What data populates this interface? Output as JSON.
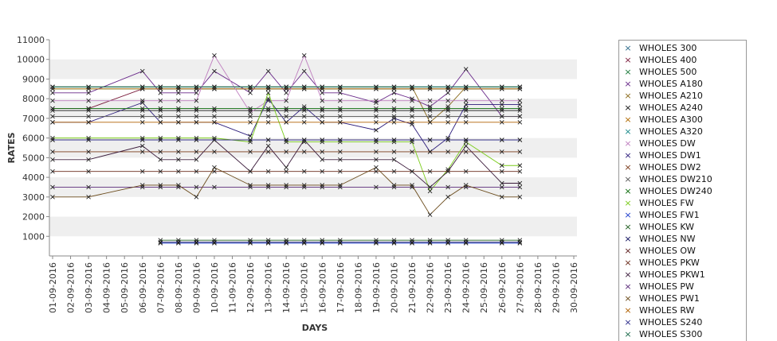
{
  "chart_data": {
    "type": "line",
    "xlabel": "DAYS",
    "ylabel": "RATES",
    "ylim": [
      0,
      11000
    ],
    "yticks": [
      1000,
      2000,
      3000,
      4000,
      5000,
      6000,
      7000,
      8000,
      9000,
      10000,
      11000
    ],
    "grid": "alternating horizontal bands",
    "legend_position": "right",
    "categories": [
      "01-09-2016",
      "02-09-2016",
      "03-09-2016",
      "04-09-2016",
      "05-09-2016",
      "06-09-2016",
      "07-09-2016",
      "08-09-2016",
      "09-09-2016",
      "10-09-2016",
      "11-09-2016",
      "12-09-2016",
      "13-09-2016",
      "14-09-2016",
      "15-09-2016",
      "16-09-2016",
      "17-09-2016",
      "18-09-2016",
      "19-09-2016",
      "20-09-2016",
      "21-09-2016",
      "22-09-2016",
      "23-09-2016",
      "24-09-2016",
      "25-09-2016",
      "26-09-2016",
      "27-09-2016",
      "28-09-2016",
      "29-09-2016",
      "30-09-2016"
    ],
    "series": [
      {
        "name": "WHOLES 300",
        "color": "#2e6b8a",
        "values": [
          8600,
          null,
          8600,
          null,
          null,
          8600,
          8600,
          8600,
          8600,
          8600,
          null,
          8600,
          8600,
          8600,
          8600,
          8600,
          8600,
          null,
          8600,
          8600,
          8600,
          8600,
          8600,
          8600,
          null,
          8600,
          8600,
          null,
          null,
          null
        ]
      },
      {
        "name": "WHOLES 400",
        "color": "#7a1a3a",
        "values": [
          7500,
          null,
          7500,
          null,
          null,
          8500,
          8500,
          8500,
          8500,
          8500,
          null,
          8500,
          8500,
          8500,
          8500,
          8500,
          8500,
          null,
          8500,
          8500,
          8500,
          8500,
          8500,
          8500,
          null,
          8500,
          8500,
          null,
          null,
          null
        ]
      },
      {
        "name": "WHOLES 500",
        "color": "#1a7a3a",
        "values": [
          8500,
          null,
          8500,
          null,
          null,
          8500,
          8500,
          8500,
          8500,
          8500,
          null,
          8500,
          8500,
          8500,
          8500,
          8500,
          8500,
          null,
          8500,
          8500,
          8500,
          8500,
          8500,
          8500,
          null,
          8500,
          8500,
          null,
          null,
          null
        ]
      },
      {
        "name": "WHOLES A180",
        "color": "#6a2a8a",
        "values": [
          8300,
          null,
          8300,
          null,
          null,
          9400,
          8300,
          8300,
          8300,
          9400,
          null,
          8300,
          9400,
          8300,
          9400,
          8300,
          8300,
          null,
          7800,
          8300,
          8000,
          7600,
          8300,
          9500,
          null,
          7100,
          7100,
          null,
          null,
          null
        ]
      },
      {
        "name": "WHOLES A210",
        "color": "#8a6a1a",
        "values": [
          8600,
          null,
          8600,
          null,
          null,
          8600,
          8600,
          8600,
          8600,
          8600,
          null,
          8600,
          8600,
          8600,
          8600,
          8600,
          8600,
          null,
          8600,
          8600,
          8600,
          6800,
          7600,
          8600,
          null,
          8600,
          8600,
          null,
          null,
          null
        ]
      },
      {
        "name": "WHOLES A240",
        "color": "#111111",
        "values": [
          7400,
          null,
          7400,
          null,
          null,
          7400,
          7400,
          7400,
          7400,
          7400,
          null,
          7400,
          7400,
          7400,
          7400,
          7400,
          7400,
          null,
          7400,
          7400,
          7400,
          7400,
          7400,
          7400,
          null,
          7400,
          7400,
          null,
          null,
          null
        ]
      },
      {
        "name": "WHOLES A300",
        "color": "#b06a00",
        "values": [
          8500,
          null,
          8500,
          null,
          null,
          8500,
          8500,
          8500,
          8500,
          8500,
          null,
          8500,
          8500,
          8500,
          8500,
          8500,
          8500,
          null,
          8500,
          8500,
          8500,
          8500,
          8500,
          8500,
          null,
          8500,
          8500,
          null,
          null,
          null
        ]
      },
      {
        "name": "WHOLES A320",
        "color": "#1a8a8a",
        "values": [
          8600,
          null,
          8600,
          null,
          null,
          8600,
          8600,
          8600,
          8600,
          8600,
          null,
          8600,
          8600,
          8600,
          8600,
          8600,
          8600,
          null,
          8600,
          8600,
          8600,
          8600,
          8600,
          8600,
          null,
          8600,
          8600,
          null,
          null,
          null
        ]
      },
      {
        "name": "WHOLES DW",
        "color": "#c080c0",
        "values": [
          7900,
          null,
          7900,
          null,
          null,
          7900,
          7900,
          7900,
          7900,
          10200,
          null,
          7300,
          7900,
          7900,
          10200,
          7900,
          7900,
          null,
          7900,
          7900,
          7900,
          7900,
          7900,
          7900,
          null,
          7900,
          7900,
          null,
          null,
          null
        ]
      },
      {
        "name": "WHOLES DW1",
        "color": "#2a1a7a",
        "values": [
          6800,
          null,
          6800,
          null,
          null,
          7800,
          6800,
          6800,
          6800,
          6800,
          null,
          6100,
          8000,
          6800,
          7600,
          6800,
          6800,
          null,
          6400,
          7000,
          6700,
          5300,
          6000,
          7700,
          null,
          7700,
          7700,
          null,
          null,
          null
        ]
      },
      {
        "name": "WHOLES DW2",
        "color": "#7a3a1a",
        "values": [
          5300,
          null,
          5300,
          null,
          null,
          5300,
          5300,
          5300,
          5300,
          5300,
          null,
          5300,
          5300,
          5300,
          5300,
          5300,
          5300,
          null,
          5300,
          5300,
          5300,
          5300,
          5300,
          5300,
          null,
          5300,
          5300,
          null,
          null,
          null
        ]
      },
      {
        "name": "WHOLES DW210",
        "color": "#555555",
        "values": [
          7100,
          null,
          7100,
          null,
          null,
          7100,
          7100,
          7100,
          7100,
          7100,
          null,
          7100,
          7100,
          7100,
          7100,
          7100,
          7100,
          null,
          7100,
          7100,
          7100,
          7100,
          7100,
          7100,
          null,
          7100,
          7100,
          null,
          null,
          null
        ]
      },
      {
        "name": "WHOLES DW240",
        "color": "#0a6a0a",
        "values": [
          7500,
          null,
          7500,
          null,
          null,
          7500,
          7500,
          7500,
          7500,
          7500,
          null,
          7500,
          7500,
          7500,
          7500,
          7500,
          7500,
          null,
          7500,
          7500,
          7500,
          7500,
          7500,
          7500,
          null,
          7500,
          7500,
          null,
          null,
          null
        ]
      },
      {
        "name": "WHOLES FW",
        "color": "#7acc1a",
        "values": [
          6000,
          null,
          6000,
          null,
          null,
          6000,
          6000,
          6000,
          6000,
          6000,
          null,
          5800,
          8300,
          5800,
          5800,
          5800,
          5800,
          null,
          5800,
          5800,
          5800,
          3300,
          4400,
          5800,
          null,
          4600,
          4600,
          null,
          null,
          null
        ]
      },
      {
        "name": "WHOLES FW1",
        "color": "#1a3acc",
        "values": [
          null,
          null,
          null,
          null,
          null,
          null,
          650,
          650,
          650,
          650,
          null,
          650,
          650,
          650,
          650,
          650,
          650,
          null,
          650,
          650,
          650,
          650,
          650,
          650,
          null,
          650,
          650,
          null,
          null,
          null
        ]
      },
      {
        "name": "WHOLES KW",
        "color": "#1a5a1a",
        "values": [
          null,
          null,
          null,
          null,
          null,
          null,
          800,
          800,
          800,
          800,
          null,
          800,
          800,
          800,
          800,
          800,
          800,
          null,
          800,
          800,
          800,
          800,
          800,
          800,
          null,
          800,
          800,
          null,
          null,
          null
        ]
      },
      {
        "name": "WHOLES NW",
        "color": "#0a0a5a",
        "values": [
          null,
          null,
          null,
          null,
          null,
          null,
          700,
          700,
          700,
          700,
          null,
          700,
          700,
          700,
          700,
          700,
          700,
          null,
          700,
          700,
          700,
          700,
          700,
          700,
          null,
          700,
          700,
          null,
          null,
          null
        ]
      },
      {
        "name": "WHOLES OW",
        "color": "#5a1a1a",
        "values": [
          5900,
          null,
          5900,
          null,
          null,
          5900,
          5900,
          5900,
          5900,
          5900,
          null,
          5900,
          5900,
          5900,
          5900,
          5900,
          5900,
          null,
          5900,
          5900,
          5900,
          5900,
          5900,
          5900,
          null,
          5900,
          5900,
          null,
          null,
          null
        ]
      },
      {
        "name": "WHOLES PKW",
        "color": "#6a2a1a",
        "values": [
          4300,
          null,
          4300,
          null,
          null,
          4300,
          4300,
          4300,
          4300,
          4300,
          null,
          4300,
          4300,
          4300,
          4300,
          4300,
          4300,
          null,
          4300,
          4300,
          4300,
          4300,
          4300,
          4300,
          null,
          4300,
          4300,
          null,
          null,
          null
        ]
      },
      {
        "name": "WHOLES PKW1",
        "color": "#3a1a3a",
        "values": [
          4900,
          null,
          4900,
          null,
          null,
          5600,
          4900,
          4900,
          4900,
          5900,
          null,
          4300,
          5600,
          4500,
          5900,
          4900,
          4900,
          null,
          4900,
          4900,
          4300,
          3500,
          4300,
          5600,
          null,
          3700,
          3700,
          null,
          null,
          null
        ]
      },
      {
        "name": "WHOLES PW",
        "color": "#5a2a7a",
        "values": [
          3500,
          null,
          3500,
          null,
          null,
          3500,
          3500,
          3500,
          3500,
          3500,
          null,
          3500,
          3500,
          3500,
          3500,
          3500,
          3500,
          null,
          3500,
          3500,
          3500,
          3500,
          3500,
          3500,
          null,
          3500,
          3500,
          null,
          null,
          null
        ]
      },
      {
        "name": "WHOLES PW1",
        "color": "#6a4a1a",
        "values": [
          3000,
          null,
          3000,
          null,
          null,
          3600,
          3600,
          3600,
          3000,
          4500,
          null,
          3600,
          3600,
          3600,
          3600,
          3600,
          3600,
          null,
          4500,
          3600,
          3600,
          2100,
          3000,
          3600,
          null,
          3000,
          3000,
          null,
          null,
          null
        ]
      },
      {
        "name": "WHOLES RW",
        "color": "#b06000",
        "values": [
          6800,
          null,
          6800,
          null,
          null,
          6800,
          6800,
          6800,
          6800,
          6800,
          null,
          6800,
          6800,
          6800,
          6800,
          6800,
          6800,
          null,
          6800,
          6800,
          6800,
          6800,
          6800,
          6800,
          null,
          6800,
          6800,
          null,
          null,
          null
        ]
      },
      {
        "name": "WHOLES S240",
        "color": "#2a2a8a",
        "values": [
          5900,
          null,
          5900,
          null,
          null,
          5900,
          5900,
          5900,
          5900,
          5900,
          null,
          5900,
          5900,
          5900,
          5900,
          5900,
          5900,
          null,
          5900,
          5900,
          5900,
          5900,
          5900,
          5900,
          null,
          5900,
          5900,
          null,
          null,
          null
        ]
      },
      {
        "name": "WHOLES S300",
        "color": "#1a6a4a",
        "values": [
          8600,
          null,
          8600,
          null,
          null,
          8600,
          8600,
          8600,
          8600,
          8600,
          null,
          8600,
          8600,
          8600,
          8600,
          8600,
          8600,
          null,
          8600,
          8600,
          8600,
          8600,
          8600,
          8600,
          null,
          8600,
          8600,
          null,
          null,
          null
        ]
      }
    ]
  }
}
